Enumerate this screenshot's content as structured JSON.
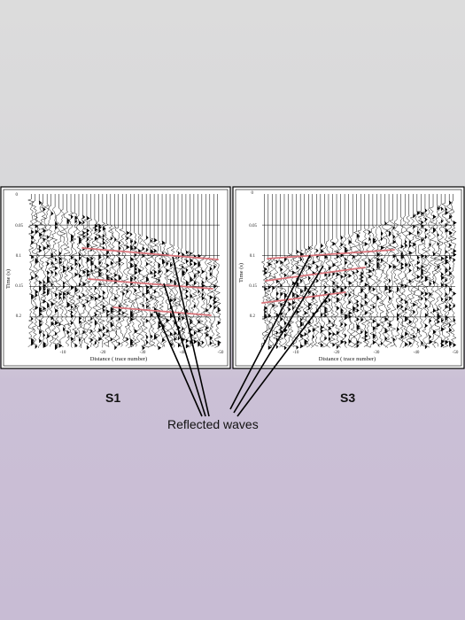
{
  "panels": [
    {
      "id": "S1",
      "label": "S1",
      "ylabel": "Time (s)",
      "xlabel": "Distance ( trace number)",
      "yticks": [
        "0",
        "0.05",
        "0.1",
        "0.15",
        "0.2"
      ],
      "xticks": [
        "-10",
        "-20",
        "-30",
        "-40",
        "-50"
      ],
      "reflectors": 3
    },
    {
      "id": "S3",
      "label": "S3",
      "ylabel": "Time (s)",
      "xlabel": "Distance ( trace number)",
      "yticks": [
        "0",
        "0.05",
        "0.1",
        "0.15",
        "0.2"
      ],
      "xticks": [
        "-10",
        "-20",
        "-30",
        "-40",
        "-50"
      ],
      "reflectors": 3
    }
  ],
  "caption": "Reflected waves",
  "colors": {
    "reflector": "#d9737a",
    "trace": "#111111",
    "frame": "#000000"
  }
}
